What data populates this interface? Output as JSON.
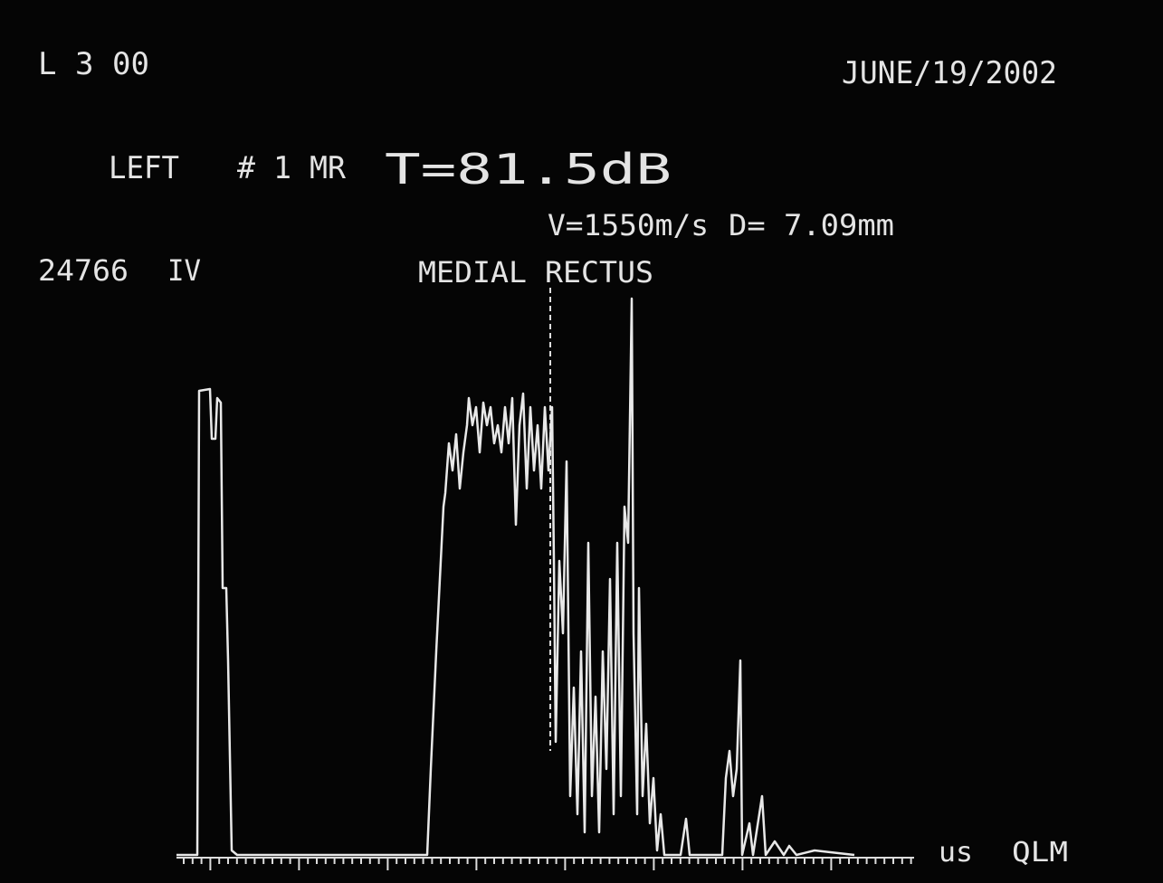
{
  "header": {
    "code": "L 3 00",
    "date": "JUNE/19/2002",
    "side": "LEFT",
    "probe": "# 1 MR",
    "threshold": "T=81.5dB",
    "velocity": "V=1550m/s",
    "distance": "D= 7.09mm",
    "patient_id": "24766",
    "mode": "IV",
    "structure": "MEDIAL RECTUS"
  },
  "footer": {
    "unit": "us",
    "tag": "QLM"
  }
}
